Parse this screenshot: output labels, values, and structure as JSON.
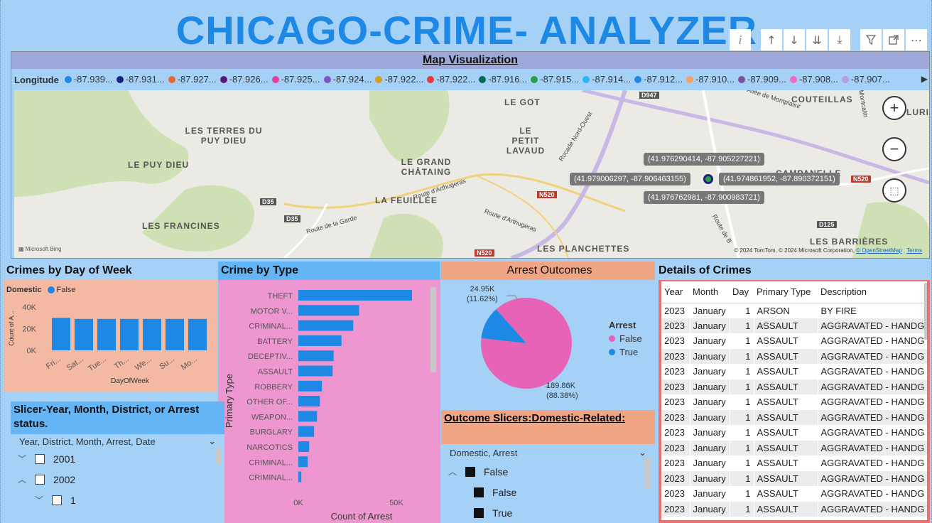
{
  "app": {
    "title": "CHICAGO-CRIME- ANALYZER"
  },
  "toolbar": {
    "info_icon": "info-icon",
    "buttons": [
      "arrow-up-icon",
      "arrow-down-icon",
      "double-arrow-down-icon",
      "expand-hierarchy-icon",
      "filter-icon",
      "focus-mode-icon",
      "more-options-icon"
    ]
  },
  "map": {
    "title": "Map Visualization",
    "legend_title": "Longitude",
    "legend": [
      {
        "label": "-87.939...",
        "color": "#1e88e5"
      },
      {
        "label": "-87.931...",
        "color": "#1a237e"
      },
      {
        "label": "-87.927...",
        "color": "#e8692e"
      },
      {
        "label": "-87.926...",
        "color": "#5a1a7a"
      },
      {
        "label": "-87.925...",
        "color": "#e040a0"
      },
      {
        "label": "-87.924...",
        "color": "#7e57c2"
      },
      {
        "label": "-87.922...",
        "color": "#d4a017"
      },
      {
        "label": "-87.922...",
        "color": "#e53935"
      },
      {
        "label": "-87.916...",
        "color": "#00695c"
      },
      {
        "label": "-87.915...",
        "color": "#2e9e44"
      },
      {
        "label": "-87.914...",
        "color": "#29b6f6"
      },
      {
        "label": "-87.912...",
        "color": "#1e88e5"
      },
      {
        "label": "-87.910...",
        "color": "#f4a460"
      },
      {
        "label": "-87.909...",
        "color": "#7b4fa0"
      },
      {
        "label": "-87.908...",
        "color": "#f06bc4"
      },
      {
        "label": "-87.907...",
        "color": "#b39ddb"
      }
    ],
    "places": [
      "LE GOT",
      "COUTEILLAS",
      "LES TERRES DU PUY DIEU",
      "LE PETIT LAVAUD",
      "LE PUY DIEU",
      "LE GRAND CHÂTAING",
      "CAMPANELLE",
      "LA FEUILLÉE",
      "LES FRANCINES",
      "LES PLANCHETTES",
      "LES BARRIÈRES",
      "LURIE"
    ],
    "roads": [
      "Allée de Montplaisir",
      "Rocade Nord-Ouest",
      "Route d'Arthugeras",
      "Route de la Garde",
      "Route d'Arthugeras",
      "Route de B",
      "Montcalm"
    ],
    "road_badges": [
      "D947",
      "N520",
      "D35",
      "D35",
      "N520",
      "D125",
      "N520"
    ],
    "tooltips": [
      "(41.976290414, -87.905227221)",
      "(41.979006297, -87.906463155)",
      "(41.974861952, -87.890372151)",
      "(41.976762981, -87.900983721)"
    ],
    "bing": "Microsoft Bing",
    "attribution": "© 2024 TomTom, © 2024 Microsoft Corporation,",
    "attribution_link": "© OpenStreetMap",
    "terms": "Terms"
  },
  "dow": {
    "title": "Crimes by Day of Week",
    "legend_title": "Domestic",
    "legend_item": "False",
    "ylabel": "Count of A...",
    "xlabel": "DayOfWeek"
  },
  "type_chart": {
    "title": "Crime by Type",
    "ylabel": "Primary Type",
    "xlabel": "Count of Arrest"
  },
  "arrest": {
    "title": "Arrest Outcomes",
    "legend_title": "Arrest",
    "legend": [
      {
        "label": "False",
        "color": "#e763b8"
      },
      {
        "label": "True",
        "color": "#1e88e5"
      }
    ],
    "label_true": "24.95K",
    "label_true_pct": "(11.62%)",
    "label_false": "189.86K",
    "label_false_pct": "(88.38%)"
  },
  "outcome": {
    "title": "Outcome Slicers:Domestic-Related:",
    "header": "Domestic, Arrest",
    "items": [
      {
        "label": "False",
        "level": 0
      },
      {
        "label": "False",
        "level": 1
      },
      {
        "label": "True",
        "level": 1
      }
    ]
  },
  "slicer": {
    "title": "Slicer-Year, Month, District, or Arrest status.",
    "header": "Year, District, Month, Arrest, Date",
    "items": [
      {
        "label": "2001",
        "level": 0,
        "expanded": false
      },
      {
        "label": "2002",
        "level": 0,
        "expanded": true
      },
      {
        "label": "1",
        "level": 1,
        "expanded": false
      }
    ]
  },
  "details": {
    "title": "Details of Crimes",
    "columns": [
      "Year",
      "Month",
      "Day",
      "Primary Type",
      "Description"
    ],
    "rows": [
      [
        "2023",
        "January",
        "1",
        "ARSON",
        "BY FIRE"
      ],
      [
        "2023",
        "January",
        "1",
        "ASSAULT",
        "AGGRAVATED - HANDG"
      ],
      [
        "2023",
        "January",
        "1",
        "ASSAULT",
        "AGGRAVATED - HANDG"
      ],
      [
        "2023",
        "January",
        "1",
        "ASSAULT",
        "AGGRAVATED - HANDG"
      ],
      [
        "2023",
        "January",
        "1",
        "ASSAULT",
        "AGGRAVATED - HANDG"
      ],
      [
        "2023",
        "January",
        "1",
        "ASSAULT",
        "AGGRAVATED - HANDG"
      ],
      [
        "2023",
        "January",
        "1",
        "ASSAULT",
        "AGGRAVATED - HANDG"
      ],
      [
        "2023",
        "January",
        "1",
        "ASSAULT",
        "AGGRAVATED - HANDG"
      ],
      [
        "2023",
        "January",
        "1",
        "ASSAULT",
        "AGGRAVATED - HANDG"
      ],
      [
        "2023",
        "January",
        "1",
        "ASSAULT",
        "AGGRAVATED - HANDG"
      ],
      [
        "2023",
        "January",
        "1",
        "ASSAULT",
        "AGGRAVATED - HANDG"
      ],
      [
        "2023",
        "January",
        "1",
        "ASSAULT",
        "AGGRAVATED - HANDG"
      ],
      [
        "2023",
        "January",
        "1",
        "ASSAULT",
        "AGGRAVATED - HANDG"
      ],
      [
        "2023",
        "January",
        "1",
        "ASSAULT",
        "AGGRAVATED - HANDG"
      ]
    ]
  },
  "chart_data": [
    {
      "type": "bar",
      "title": "Crimes by Day of Week",
      "xlabel": "DayOfWeek",
      "ylabel": "Count of A...",
      "categories": [
        "Fri...",
        "Sat...",
        "Tue...",
        "Th...",
        "We...",
        "Su...",
        "Mo..."
      ],
      "series": [
        {
          "name": "False",
          "values": [
            30000,
            29000,
            29000,
            29000,
            29000,
            29000,
            29000
          ]
        }
      ],
      "yticks": [
        "0K",
        "20K",
        "40K"
      ],
      "ylim": [
        0,
        40000
      ],
      "legend_title": "Domestic",
      "color": "#1e88e5"
    },
    {
      "type": "bar",
      "orientation": "horizontal",
      "title": "Crime by Type",
      "xlabel": "Count of Arrest",
      "ylabel": "Primary Type",
      "categories": [
        "THEFT",
        "MOTOR V...",
        "CRIMINAL...",
        "BATTERY",
        "DECEPTIV...",
        "ASSAULT",
        "ROBBERY",
        "OTHER OF...",
        "WEAPON...",
        "BURGLARY",
        "NARCOTICS",
        "CRIMINAL...",
        "CRIMINAL..."
      ],
      "values": [
        58000,
        31000,
        28000,
        22000,
        18000,
        17500,
        12000,
        11000,
        9500,
        8000,
        5500,
        4800,
        1500
      ],
      "xticks": [
        "0K",
        "50K"
      ],
      "xlim": [
        0,
        58000
      ],
      "color": "#1e88e5"
    },
    {
      "type": "pie",
      "title": "Arrest Outcomes",
      "legend_title": "Arrest",
      "labels": [
        "False",
        "True"
      ],
      "values": [
        189860,
        24950
      ],
      "percent": [
        88.38,
        11.62
      ],
      "colors": [
        "#e763b8",
        "#1e88e5"
      ]
    }
  ]
}
